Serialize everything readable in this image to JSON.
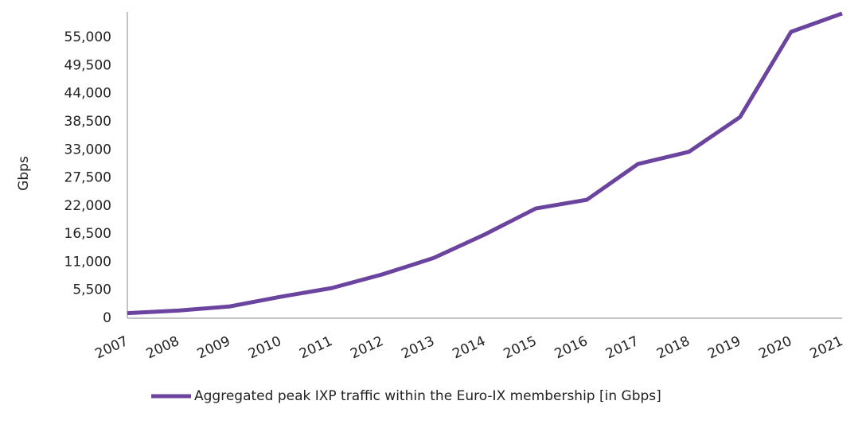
{
  "chart_data": {
    "type": "line",
    "y_label": "Gbps",
    "categories": [
      "2007",
      "2008",
      "2009",
      "2010",
      "2011",
      "2012",
      "2013",
      "2014",
      "2015",
      "2016",
      "2017",
      "2018",
      "2019",
      "2020",
      "2021"
    ],
    "series": [
      {
        "name": "Aggregated peak IXP traffic within the Euro-IX membership [in Gbps]",
        "color": "#6a449e",
        "values": [
          1000,
          1500,
          2300,
          4200,
          5900,
          8600,
          11800,
          16400,
          21500,
          23200,
          30200,
          32600,
          39400,
          56100,
          59700
        ]
      }
    ],
    "ylim": [
      0,
      60000
    ],
    "yticks": [
      0,
      {
        "value": 5500,
        "label": "5,500"
      },
      {
        "value": 11000,
        "label": "11,000"
      },
      {
        "value": 16500,
        "label": "16,500"
      },
      {
        "value": 22000,
        "label": "22,000"
      },
      {
        "value": 27500,
        "label": "27,500"
      },
      {
        "value": 33000,
        "label": "33,000"
      },
      {
        "value": 38500,
        "label": "38,500"
      },
      {
        "value": 44000,
        "label": "44,000"
      },
      {
        "value": 49500,
        "label": "49,500"
      },
      {
        "value": 55000,
        "label": "55,000"
      }
    ],
    "grid": false,
    "legend": "bottom"
  }
}
